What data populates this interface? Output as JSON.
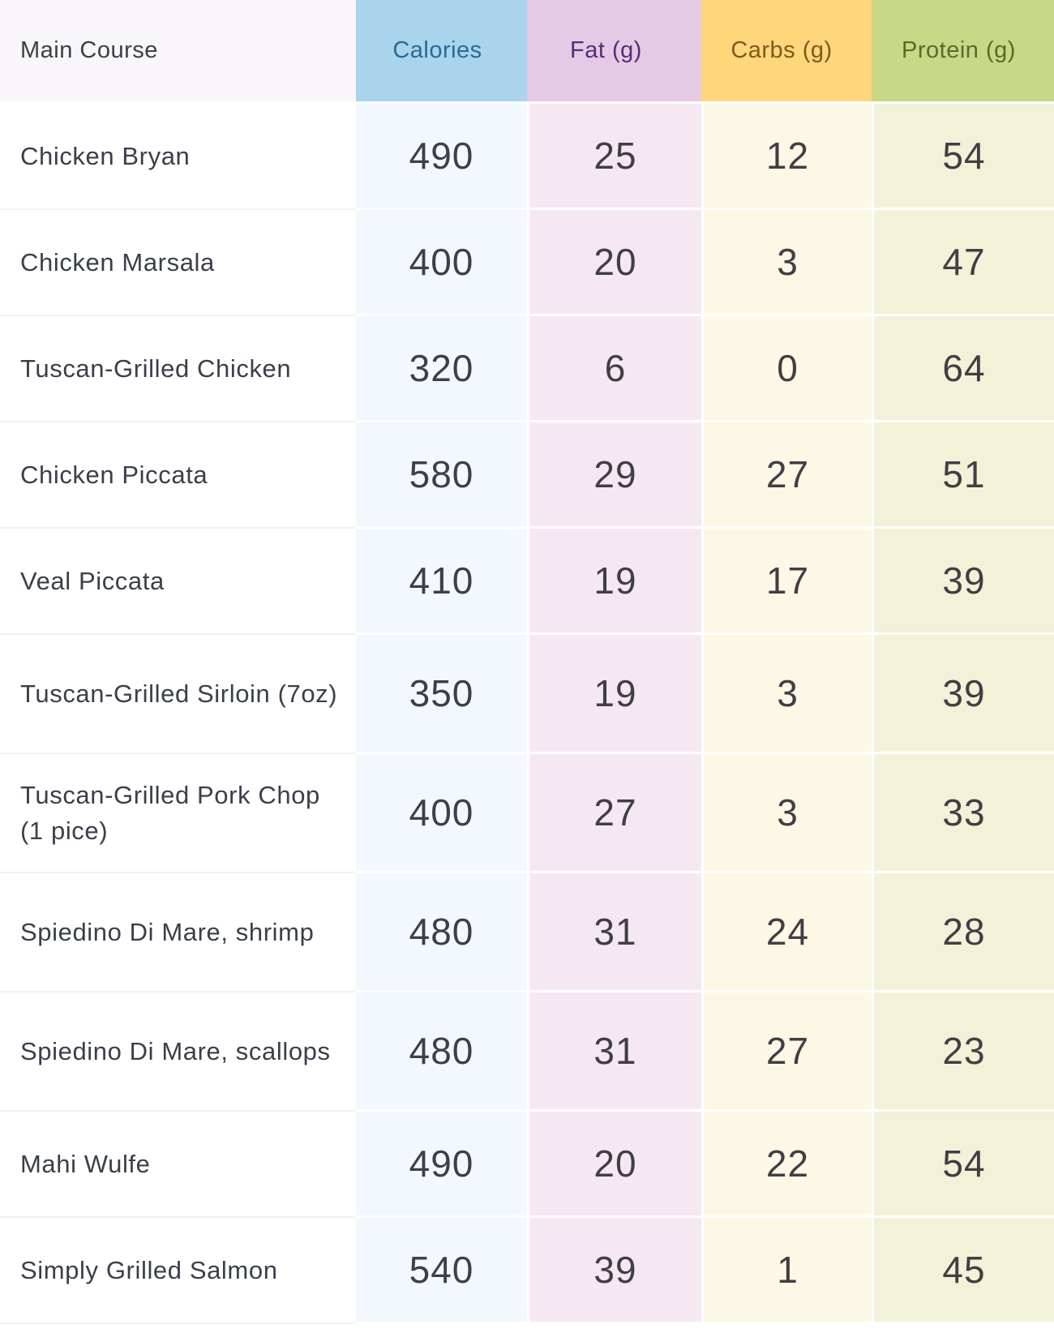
{
  "header": {
    "main_course": "Main Course",
    "calories": "Calories",
    "fat": "Fat (g)",
    "carbs": "Carbs (g)",
    "protein": "Protein (g)"
  },
  "rows": [
    {
      "name": "Chicken Bryan",
      "calories": "490",
      "fat": "25",
      "carbs": "12",
      "protein": "54"
    },
    {
      "name": "Chicken Marsala",
      "calories": "400",
      "fat": "20",
      "carbs": "3",
      "protein": "47"
    },
    {
      "name": "Tuscan-Grilled Chicken",
      "calories": "320",
      "fat": "6",
      "carbs": "0",
      "protein": "64"
    },
    {
      "name": "Chicken Piccata",
      "calories": "580",
      "fat": "29",
      "carbs": "27",
      "protein": "51"
    },
    {
      "name": "Veal Piccata",
      "calories": "410",
      "fat": "19",
      "carbs": "17",
      "protein": "39"
    },
    {
      "name": "Tuscan-Grilled Sirloin (7oz)",
      "calories": "350",
      "fat": "19",
      "carbs": "3",
      "protein": "39"
    },
    {
      "name": "Tuscan-Grilled Pork Chop (1 pice)",
      "calories": "400",
      "fat": "27",
      "carbs": "3",
      "protein": "33"
    },
    {
      "name": "Spiedino Di Mare, shrimp",
      "calories": "480",
      "fat": "31",
      "carbs": "24",
      "protein": "28"
    },
    {
      "name": "Spiedino Di Mare, scallops",
      "calories": "480",
      "fat": "31",
      "carbs": "27",
      "protein": "23"
    },
    {
      "name": "Mahi Wulfe",
      "calories": "490",
      "fat": "20",
      "carbs": "22",
      "protein": "54"
    },
    {
      "name": "Simply Grilled Salmon",
      "calories": "540",
      "fat": "39",
      "carbs": "1",
      "protein": "45"
    }
  ],
  "colors": {
    "calories_header": "#aad3ec",
    "fat_header": "#e4cae4",
    "carbs_header": "#ffd67a",
    "protein_header": "#c8d886"
  }
}
